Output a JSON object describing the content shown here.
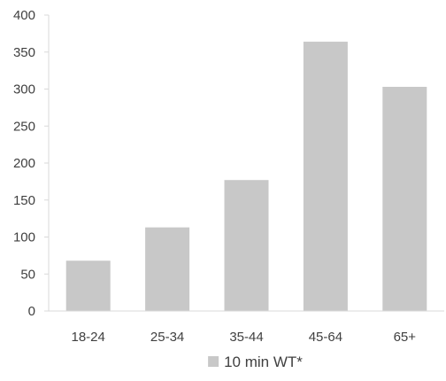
{
  "chart_data": {
    "type": "bar",
    "title": "",
    "xlabel": "",
    "ylabel": "",
    "categories": [
      "18-24",
      "25-34",
      "35-44",
      "45-64",
      "65+"
    ],
    "series": [
      {
        "name": "10 min WT*",
        "values": [
          68,
          113,
          177,
          364,
          303
        ],
        "color": "#c8c8c8"
      }
    ],
    "ylim": [
      0,
      400
    ],
    "yticks": [
      0,
      50,
      100,
      150,
      200,
      250,
      300,
      350,
      400
    ],
    "ytick_labels": [
      "0",
      "50",
      "100",
      "150",
      "200",
      "250",
      "300",
      "350",
      "400"
    ],
    "grid": false,
    "legend_position": "bottom",
    "axis_color": "#d9d9d9",
    "text_color": "#404040"
  }
}
